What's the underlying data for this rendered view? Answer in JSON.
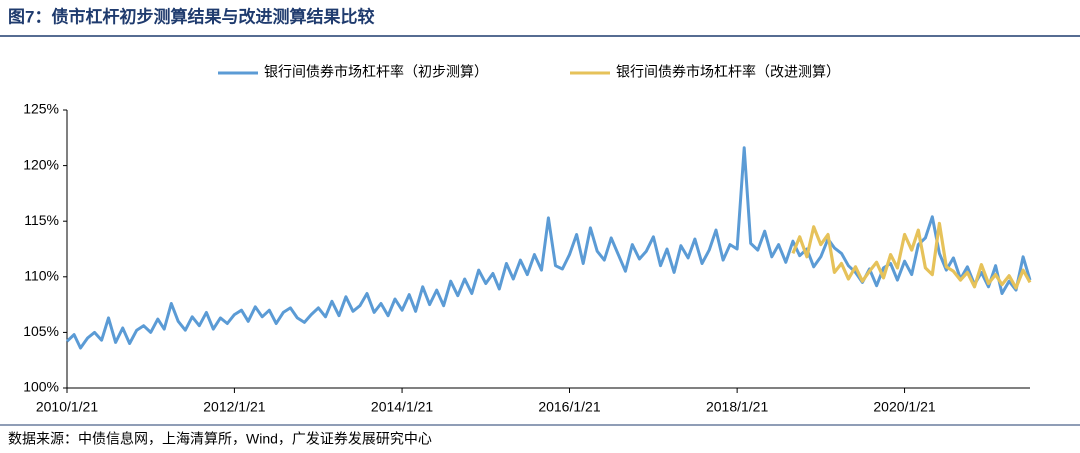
{
  "chart_data": {
    "type": "line",
    "title": "图7：债市杠杆初步测算结果与改进测算结果比较",
    "source": "数据来源：中债信息网，上海清算所，Wind，广发证券发展研究中心",
    "x": [
      "2010/1/21",
      "2010/2/21",
      "2010/3/21",
      "2010/4/21",
      "2010/5/21",
      "2010/6/21",
      "2010/7/21",
      "2010/8/21",
      "2010/9/21",
      "2010/10/21",
      "2010/11/21",
      "2010/12/21",
      "2011/1/21",
      "2011/2/21",
      "2011/3/21",
      "2011/4/21",
      "2011/5/21",
      "2011/6/21",
      "2011/7/21",
      "2011/8/21",
      "2011/9/21",
      "2011/10/21",
      "2011/11/21",
      "2011/12/21",
      "2012/1/21",
      "2012/2/21",
      "2012/3/21",
      "2012/4/21",
      "2012/5/21",
      "2012/6/21",
      "2012/7/21",
      "2012/8/21",
      "2012/9/21",
      "2012/10/21",
      "2012/11/21",
      "2012/12/21",
      "2013/1/21",
      "2013/2/21",
      "2013/3/21",
      "2013/4/21",
      "2013/5/21",
      "2013/6/21",
      "2013/7/21",
      "2013/8/21",
      "2013/9/21",
      "2013/10/21",
      "2013/11/21",
      "2013/12/21",
      "2014/1/21",
      "2014/2/21",
      "2014/3/21",
      "2014/4/21",
      "2014/5/21",
      "2014/6/21",
      "2014/7/21",
      "2014/8/21",
      "2014/9/21",
      "2014/10/21",
      "2014/11/21",
      "2014/12/21",
      "2015/1/21",
      "2015/2/21",
      "2015/3/21",
      "2015/4/21",
      "2015/5/21",
      "2015/6/21",
      "2015/7/21",
      "2015/8/21",
      "2015/9/21",
      "2015/10/21",
      "2015/11/21",
      "2015/12/21",
      "2016/1/21",
      "2016/2/21",
      "2016/3/21",
      "2016/4/21",
      "2016/5/21",
      "2016/6/21",
      "2016/7/21",
      "2016/8/21",
      "2016/9/21",
      "2016/10/21",
      "2016/11/21",
      "2016/12/21",
      "2017/1/21",
      "2017/2/21",
      "2017/3/21",
      "2017/4/21",
      "2017/5/21",
      "2017/6/21",
      "2017/7/21",
      "2017/8/21",
      "2017/9/21",
      "2017/10/21",
      "2017/11/21",
      "2017/12/21",
      "2018/1/21",
      "2018/2/21",
      "2018/3/21",
      "2018/4/21",
      "2018/5/21",
      "2018/6/21",
      "2018/7/21",
      "2018/8/21",
      "2018/9/21",
      "2018/10/21",
      "2018/11/21",
      "2018/12/21",
      "2019/1/21",
      "2019/2/21",
      "2019/3/21",
      "2019/4/21",
      "2019/5/21",
      "2019/6/21",
      "2019/7/21",
      "2019/8/21",
      "2019/9/21",
      "2019/10/21",
      "2019/11/21",
      "2019/12/21",
      "2020/1/21",
      "2020/2/21",
      "2020/3/21",
      "2020/4/21",
      "2020/5/21",
      "2020/6/21",
      "2020/7/21",
      "2020/8/21",
      "2020/9/21",
      "2020/10/21",
      "2020/11/21",
      "2020/12/21",
      "2021/1/21",
      "2021/2/21",
      "2021/3/21",
      "2021/4/21",
      "2021/5/21",
      "2021/6/21",
      "2021/7/21"
    ],
    "series": [
      {
        "name": "银行间债券市场杠杆率（初步测算）",
        "color": "#5b9bd5",
        "values": [
          104.2,
          104.8,
          103.6,
          104.5,
          105.0,
          104.3,
          106.3,
          104.1,
          105.4,
          104.0,
          105.2,
          105.6,
          105.0,
          106.2,
          105.3,
          107.6,
          106.0,
          105.2,
          106.4,
          105.6,
          106.8,
          105.3,
          106.3,
          105.8,
          106.6,
          107.0,
          106.0,
          107.3,
          106.4,
          107.0,
          105.8,
          106.8,
          107.2,
          106.3,
          105.9,
          106.6,
          107.2,
          106.4,
          107.8,
          106.5,
          108.2,
          106.9,
          107.4,
          108.5,
          106.8,
          107.6,
          106.5,
          108.0,
          107.0,
          108.4,
          106.9,
          109.1,
          107.5,
          108.8,
          107.4,
          109.6,
          108.3,
          109.8,
          108.5,
          110.6,
          109.4,
          110.3,
          108.9,
          111.2,
          109.8,
          111.5,
          110.2,
          112.0,
          110.6,
          115.3,
          111.0,
          110.7,
          112.0,
          113.8,
          111.2,
          114.4,
          112.3,
          111.5,
          113.5,
          112.0,
          110.5,
          112.9,
          111.6,
          112.3,
          113.6,
          111.0,
          112.5,
          110.4,
          112.8,
          111.7,
          113.4,
          111.2,
          112.4,
          114.2,
          111.5,
          112.9,
          112.5,
          121.6,
          113.0,
          112.4,
          114.1,
          111.8,
          112.9,
          111.3,
          113.2,
          111.9,
          112.5,
          110.9,
          111.8,
          113.4,
          112.6,
          112.1,
          111.0,
          110.4,
          109.5,
          110.7,
          109.2,
          110.8,
          111.2,
          109.7,
          111.4,
          110.2,
          112.9,
          113.5,
          115.4,
          112.1,
          110.6,
          111.7,
          109.8,
          110.9,
          109.3,
          110.4,
          109.1,
          111.0,
          108.5,
          109.6,
          108.8,
          111.8,
          109.7
        ]
      },
      {
        "name": "银行间债券市场杠杆率（改进测算）",
        "color": "#e6c25a",
        "values": [
          null,
          null,
          null,
          null,
          null,
          null,
          null,
          null,
          null,
          null,
          null,
          null,
          null,
          null,
          null,
          null,
          null,
          null,
          null,
          null,
          null,
          null,
          null,
          null,
          null,
          null,
          null,
          null,
          null,
          null,
          null,
          null,
          null,
          null,
          null,
          null,
          null,
          null,
          null,
          null,
          null,
          null,
          null,
          null,
          null,
          null,
          null,
          null,
          null,
          null,
          null,
          null,
          null,
          null,
          null,
          null,
          null,
          null,
          null,
          null,
          null,
          null,
          null,
          null,
          null,
          null,
          null,
          null,
          null,
          null,
          null,
          null,
          null,
          null,
          null,
          null,
          null,
          null,
          null,
          null,
          null,
          null,
          null,
          null,
          null,
          null,
          null,
          null,
          null,
          null,
          null,
          null,
          null,
          null,
          null,
          null,
          null,
          null,
          null,
          null,
          null,
          null,
          null,
          null,
          112.1,
          113.6,
          111.8,
          114.5,
          112.9,
          113.8,
          110.4,
          111.2,
          109.8,
          110.9,
          109.6,
          110.5,
          111.3,
          109.9,
          112.0,
          110.8,
          113.8,
          112.4,
          114.2,
          110.8,
          110.2,
          114.8,
          110.9,
          110.5,
          109.7,
          110.4,
          109.1,
          111.1,
          109.4,
          110.2,
          109.3,
          110.1,
          109.0,
          110.6,
          109.5
        ]
      }
    ],
    "xticks": [
      "2010/1/21",
      "2012/1/21",
      "2014/1/21",
      "2016/1/21",
      "2018/1/21",
      "2020/1/21"
    ],
    "ylim": [
      100,
      125
    ],
    "yticks": [
      {
        "value": 100,
        "label": "100%"
      },
      {
        "value": 105,
        "label": "105%"
      },
      {
        "value": 110,
        "label": "110%"
      },
      {
        "value": 115,
        "label": "115%"
      },
      {
        "value": 120,
        "label": "120%"
      },
      {
        "value": 125,
        "label": "125%"
      }
    ],
    "grid": false,
    "legend": "top"
  }
}
